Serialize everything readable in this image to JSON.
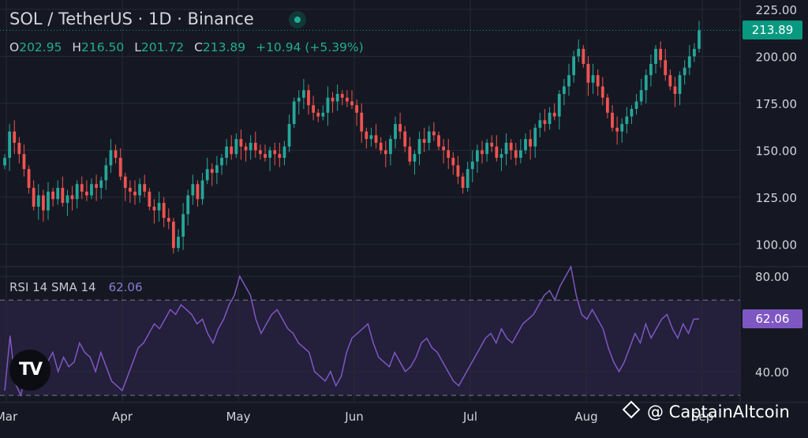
{
  "header": {
    "title": "SOL / TetherUS · 1D · Binance",
    "ohlc": [
      {
        "key": "O",
        "value": "202.95"
      },
      {
        "key": "H",
        "value": "216.50"
      },
      {
        "key": "L",
        "value": "201.72"
      },
      {
        "key": "C",
        "value": "213.89"
      }
    ],
    "change": "+10.94 (+5.39%)"
  },
  "price_tag": "213.89",
  "rsi": {
    "label": "RSI 14 SMA 14",
    "value": "62.06",
    "tag": "62.06"
  },
  "logo_text": "TV",
  "watermark": "@ CaptainAltcoin",
  "colors": {
    "background": "#151822",
    "grid": "#262a35",
    "up": "#26a69a",
    "down": "#ef5350",
    "rsi_line": "#7e57c2",
    "rsi_band": "#241f3a",
    "axis_text": "#d1d4dc"
  },
  "chart_data": [
    {
      "type": "candlestick",
      "title": "SOL / TetherUS · 1D · Binance",
      "y_ticks": [
        "225.00",
        "200.00",
        "175.00",
        "150.00",
        "125.00",
        "100.00"
      ],
      "y_tick_values": [
        225,
        200,
        175,
        150,
        125,
        100
      ],
      "x_ticks": [
        "Mar",
        "Apr",
        "May",
        "Jun",
        "Jul",
        "Aug",
        "Sep"
      ],
      "ylim": [
        88,
        230
      ],
      "last_price": 213.89,
      "grid": true,
      "closes": [
        146,
        160,
        154,
        148,
        140,
        130,
        120,
        126,
        118,
        128,
        124,
        130,
        122,
        126,
        124,
        132,
        128,
        126,
        132,
        130,
        134,
        142,
        150,
        146,
        136,
        130,
        128,
        126,
        132,
        128,
        120,
        118,
        122,
        114,
        112,
        98,
        104,
        116,
        126,
        132,
        124,
        134,
        140,
        138,
        142,
        146,
        152,
        148,
        156,
        152,
        150,
        154,
        150,
        148,
        146,
        150,
        148,
        146,
        152,
        164,
        176,
        178,
        182,
        174,
        170,
        168,
        170,
        178,
        176,
        180,
        178,
        176,
        174,
        170,
        160,
        156,
        158,
        154,
        150,
        148,
        156,
        164,
        160,
        152,
        144,
        148,
        156,
        154,
        160,
        158,
        152,
        150,
        146,
        142,
        136,
        130,
        140,
        144,
        150,
        148,
        154,
        152,
        146,
        148,
        154,
        150,
        146,
        150,
        156,
        152,
        162,
        166,
        164,
        170,
        168,
        180,
        184,
        190,
        200,
        204,
        196,
        186,
        190,
        184,
        178,
        170,
        162,
        160,
        164,
        168,
        172,
        176,
        182,
        190,
        196,
        204,
        198,
        190,
        184,
        180,
        190,
        194,
        200,
        204,
        213.89
      ]
    },
    {
      "type": "line",
      "title": "RSI 14 SMA 14",
      "y_ticks": [
        "80.00",
        "40.00"
      ],
      "y_tick_values": [
        80,
        40
      ],
      "band": [
        70,
        30
      ],
      "ylim": [
        27,
        84
      ],
      "last_value": 62.06,
      "values": [
        32,
        55,
        35,
        30,
        40,
        42,
        38,
        36,
        44,
        48,
        40,
        46,
        42,
        44,
        52,
        48,
        46,
        40,
        48,
        42,
        36,
        34,
        32,
        38,
        44,
        50,
        52,
        56,
        60,
        58,
        62,
        66,
        64,
        68,
        66,
        64,
        60,
        62,
        56,
        52,
        58,
        62,
        68,
        72,
        80,
        76,
        72,
        62,
        56,
        60,
        64,
        66,
        62,
        58,
        56,
        52,
        50,
        48,
        40,
        38,
        36,
        40,
        34,
        38,
        48,
        54,
        56,
        58,
        60,
        52,
        46,
        44,
        42,
        48,
        44,
        40,
        42,
        46,
        52,
        54,
        50,
        48,
        44,
        40,
        36,
        34,
        38,
        42,
        46,
        50,
        54,
        56,
        52,
        58,
        54,
        52,
        56,
        60,
        62,
        64,
        68,
        72,
        74,
        70,
        76,
        80,
        84,
        72,
        64,
        62,
        66,
        62,
        58,
        50,
        44,
        40,
        44,
        50,
        56,
        52,
        60,
        54,
        58,
        62,
        64,
        58,
        54,
        60,
        56,
        62,
        62.06
      ]
    }
  ]
}
